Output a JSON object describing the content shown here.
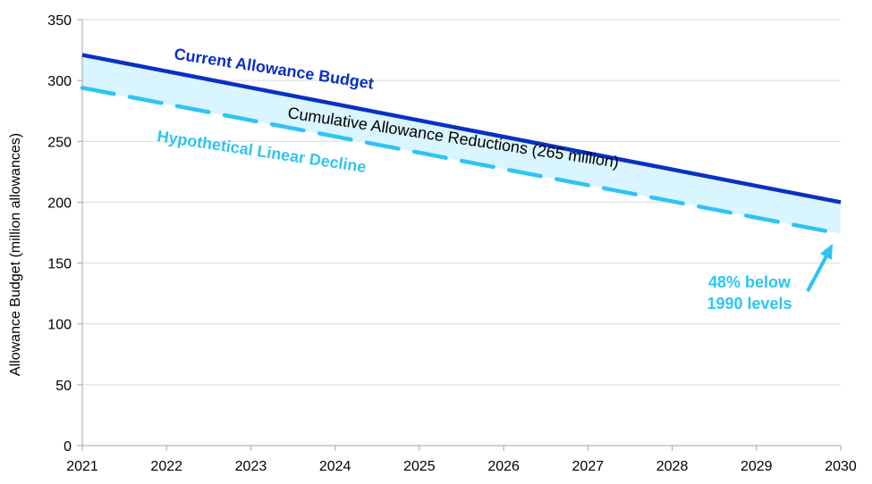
{
  "chart_data": {
    "type": "line",
    "title": "",
    "xlabel": "",
    "ylabel": "Allowance Budget (million allowances)",
    "x": [
      2021,
      2022,
      2023,
      2024,
      2025,
      2026,
      2027,
      2028,
      2029,
      2030
    ],
    "xlim": [
      2021,
      2030
    ],
    "ylim": [
      0,
      350
    ],
    "yticks": [
      0,
      50,
      100,
      150,
      200,
      250,
      300,
      350
    ],
    "grid": "horizontal",
    "series": [
      {
        "name": "Current Allowance Budget",
        "style": "solid",
        "color": "#0a2fc4",
        "values": [
          321,
          307.6,
          294.1,
          280.7,
          267.2,
          253.8,
          240.3,
          226.9,
          213.4,
          200
        ]
      },
      {
        "name": "Hypothetical Linear Decline",
        "style": "dashed",
        "color": "#2ec4f2",
        "values": [
          294,
          280.7,
          267.3,
          254,
          240.7,
          227.3,
          214,
          200.7,
          187.3,
          174
        ]
      }
    ],
    "fill_between": {
      "label": "Cumulative Allowance Reductions (265 million)",
      "color": "#d9f5ff"
    },
    "annotations": [
      {
        "text_lines": [
          "48% below",
          "1990 levels"
        ],
        "color": "#2ec4f2",
        "points_to": {
          "x": 2030,
          "y": 174
        }
      }
    ]
  }
}
